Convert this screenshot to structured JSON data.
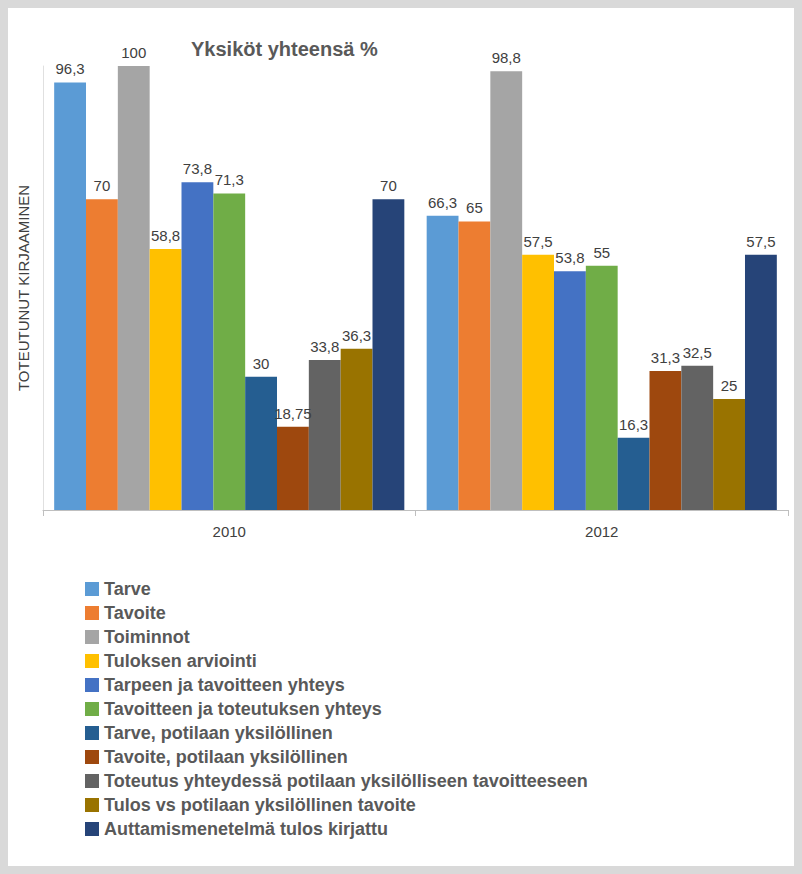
{
  "chart_data": {
    "type": "bar",
    "title": "Yksiköt yhteensä %",
    "y_label": "TOTEUTUNUT KIRJAAMINEN",
    "categories": [
      "2010",
      "2012"
    ],
    "series": [
      {
        "name": "Tarve",
        "color": "#5b9bd5",
        "values": [
          96.3,
          66.3
        ],
        "value_labels": [
          "96,3",
          "66,3"
        ]
      },
      {
        "name": "Tavoite",
        "color": "#ed7d31",
        "values": [
          70,
          65
        ],
        "value_labels": [
          "70",
          "65"
        ]
      },
      {
        "name": "Toiminnot",
        "color": "#a5a5a5",
        "values": [
          100,
          98.8
        ],
        "value_labels": [
          "100",
          "98,8"
        ]
      },
      {
        "name": "Tuloksen arviointi",
        "color": "#ffc000",
        "values": [
          58.8,
          57.5
        ],
        "value_labels": [
          "58,8",
          "57,5"
        ]
      },
      {
        "name": "Tarpeen ja tavoitteen yhteys",
        "color": "#4472c4",
        "values": [
          73.8,
          53.8
        ],
        "value_labels": [
          "73,8",
          "53,8"
        ]
      },
      {
        "name": "Tavoitteen ja toteutuksen yhteys",
        "color": "#70ad47",
        "values": [
          71.3,
          55
        ],
        "value_labels": [
          "71,3",
          "55"
        ]
      },
      {
        "name": "Tarve, potilaan yksilöllinen",
        "color": "#255e91",
        "values": [
          30,
          16.3
        ],
        "value_labels": [
          "30",
          "16,3"
        ]
      },
      {
        "name": "Tavoite, potilaan yksilöllinen",
        "color": "#9e480e",
        "values": [
          18.75,
          31.3
        ],
        "value_labels": [
          "18,75",
          "31,3"
        ]
      },
      {
        "name": "Toteutus yhteydessä potilaan yksilölliseen tavoitteeseen",
        "color": "#636363",
        "values": [
          33.8,
          32.5
        ],
        "value_labels": [
          "33,8",
          "32,5"
        ]
      },
      {
        "name": "Tulos vs potilaan yksilöllinen tavoite",
        "color": "#997300",
        "values": [
          36.3,
          25
        ],
        "value_labels": [
          "36,3",
          "25"
        ]
      },
      {
        "name": "Auttamismenetelmä tulos kirjattu",
        "color": "#264478",
        "values": [
          70,
          57.5
        ],
        "value_labels": [
          "70",
          "57,5"
        ]
      }
    ],
    "ylim": [
      0,
      100
    ],
    "tick_labels": "x",
    "grid": false,
    "data_labels": true,
    "legend": "bottom"
  }
}
